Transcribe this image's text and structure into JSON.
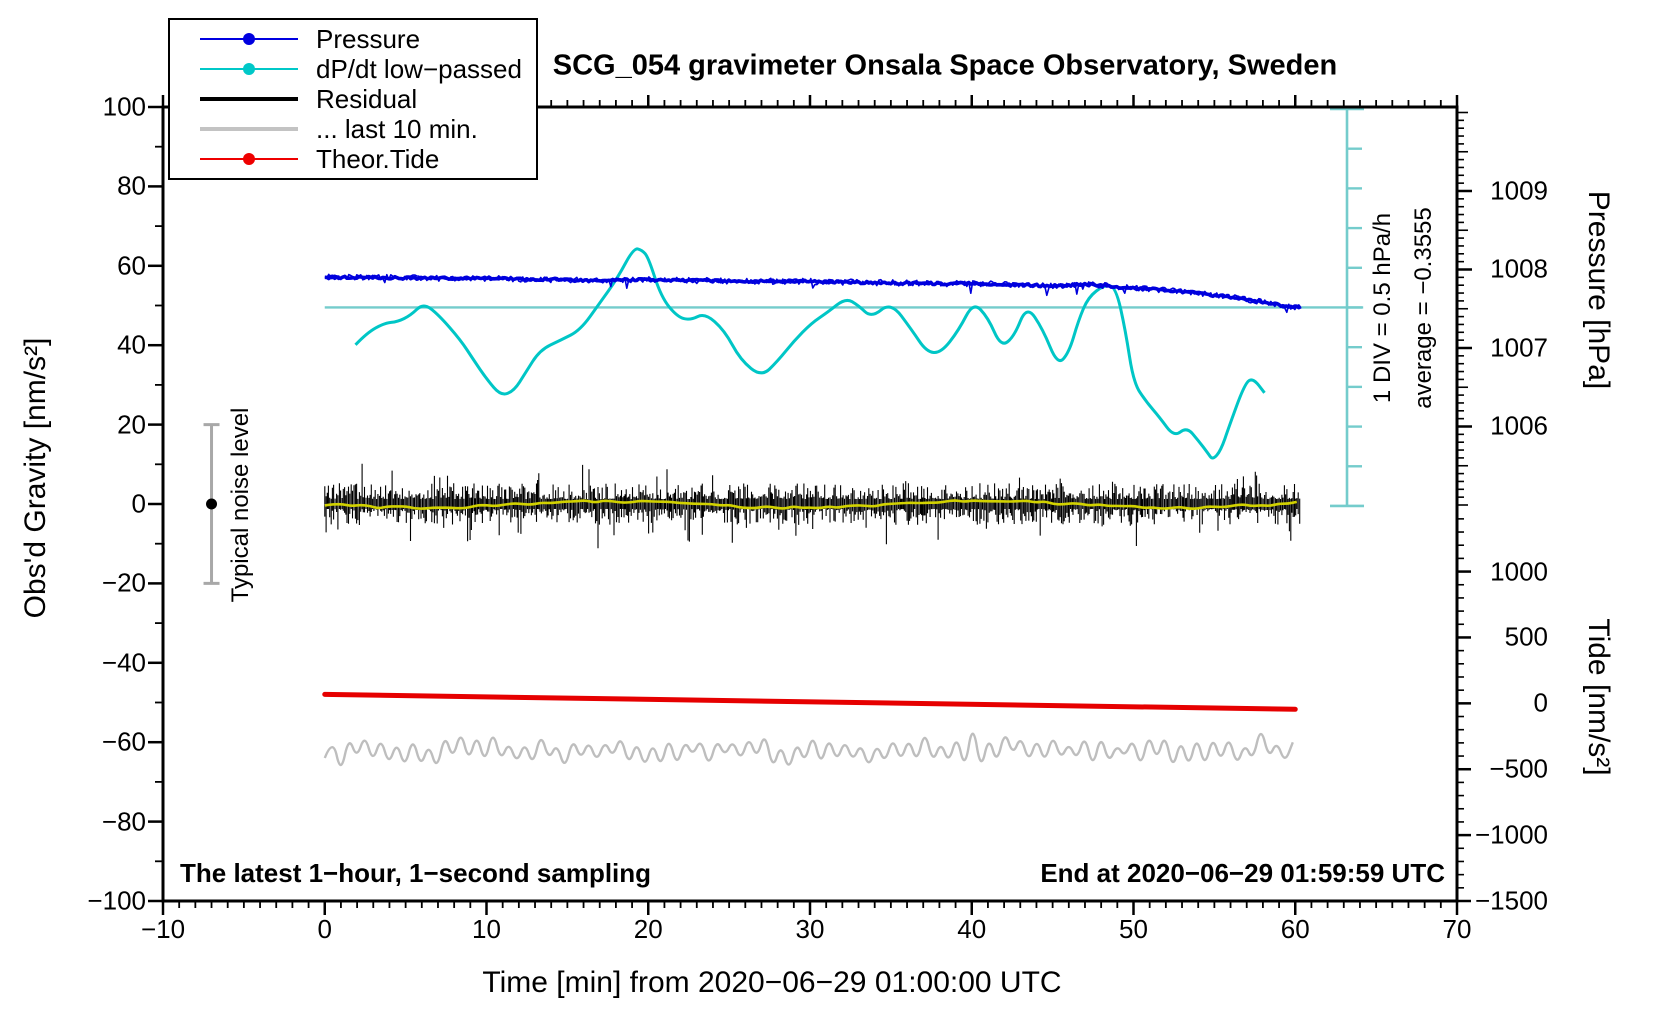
{
  "chart_data": {
    "type": "line",
    "title": "SCG_054 gravimeter Onsala Space Observatory, Sweden",
    "axes": {
      "x": {
        "title": "Time [min] from 2020−06−29 01:00:00 UTC",
        "min": -10,
        "max": 70,
        "major_step": 10,
        "minor_step": 1,
        "labels": [
          -10,
          0,
          10,
          20,
          30,
          40,
          50,
          60,
          70
        ]
      },
      "left": {
        "title": "Obs'd Gravity [nm/s²]",
        "min": -100,
        "max": 100,
        "major_step": 20,
        "minor_step": 10,
        "labels": [
          100,
          80,
          60,
          40,
          20,
          0,
          -20,
          -40,
          -60,
          -80,
          -100
        ]
      },
      "pressure": {
        "title": "Pressure [hPa]",
        "top_value": 1010.07,
        "bottom_value": 1005.0,
        "medium_step": 0.5,
        "minor_step": 0.1,
        "labels": [
          1009,
          1008,
          1007,
          1006
        ]
      },
      "tide": {
        "title": "Tide [nm/s²]",
        "top_value": 1490,
        "bottom_value": -1500,
        "minor_step": 100,
        "labels": [
          1000,
          500,
          0,
          -500,
          -1000,
          -1500
        ]
      }
    },
    "series": [
      {
        "name": "Pressure",
        "axis": "pressure",
        "color": "#0000dd",
        "points": [
          [
            0,
            1007.9
          ],
          [
            3,
            1007.9
          ],
          [
            6,
            1007.89
          ],
          [
            9,
            1007.89
          ],
          [
            12,
            1007.88
          ],
          [
            15,
            1007.87
          ],
          [
            16.5,
            1007.85
          ],
          [
            18,
            1007.87
          ],
          [
            20,
            1007.87
          ],
          [
            23,
            1007.86
          ],
          [
            26,
            1007.85
          ],
          [
            29,
            1007.85
          ],
          [
            32,
            1007.84
          ],
          [
            35,
            1007.83
          ],
          [
            38,
            1007.82
          ],
          [
            40,
            1007.82
          ],
          [
            42,
            1007.81
          ],
          [
            44,
            1007.8
          ],
          [
            45.5,
            1007.79
          ],
          [
            47,
            1007.81
          ],
          [
            48,
            1007.8
          ],
          [
            49,
            1007.78
          ],
          [
            50,
            1007.76
          ],
          [
            51,
            1007.75
          ],
          [
            52,
            1007.74
          ],
          [
            53,
            1007.72
          ],
          [
            54,
            1007.7
          ],
          [
            55,
            1007.67
          ],
          [
            56,
            1007.65
          ],
          [
            57,
            1007.62
          ],
          [
            58,
            1007.59
          ],
          [
            59,
            1007.55
          ],
          [
            60,
            1007.52
          ],
          [
            60.4,
            1007.51
          ]
        ]
      },
      {
        "name": "dP/dt low−passed",
        "axis": "left",
        "color": "#00c6c6",
        "points": [
          [
            1.9,
            40.1
          ],
          [
            2.6,
            43.1
          ],
          [
            3.7,
            45.6
          ],
          [
            4.5,
            45.9
          ],
          [
            5.3,
            47.5
          ],
          [
            6.1,
            50.6
          ],
          [
            7.0,
            47.8
          ],
          [
            8.4,
            41.3
          ],
          [
            9.2,
            36.3
          ],
          [
            10.0,
            31.5
          ],
          [
            10.9,
            27.2
          ],
          [
            11.7,
            28.5
          ],
          [
            12.4,
            33.0
          ],
          [
            13.3,
            38.8
          ],
          [
            14.6,
            41.3
          ],
          [
            15.8,
            43.8
          ],
          [
            17.0,
            50.6
          ],
          [
            18.1,
            56.9
          ],
          [
            19.1,
            64.5
          ],
          [
            19.6,
            64.0
          ],
          [
            20.0,
            62.2
          ],
          [
            20.8,
            52.1
          ],
          [
            21.8,
            47.1
          ],
          [
            22.6,
            46.3
          ],
          [
            23.5,
            48.1
          ],
          [
            24.7,
            43.8
          ],
          [
            25.7,
            36.3
          ],
          [
            27.0,
            32.0
          ],
          [
            28.0,
            36.0
          ],
          [
            29.0,
            41.0
          ],
          [
            30.1,
            45.6
          ],
          [
            31.1,
            48.3
          ],
          [
            32.2,
            51.9
          ],
          [
            33.0,
            50.0
          ],
          [
            33.8,
            46.9
          ],
          [
            35.0,
            50.9
          ],
          [
            36.3,
            43.8
          ],
          [
            37.2,
            38.3
          ],
          [
            38.1,
            38.0
          ],
          [
            39.2,
            43.8
          ],
          [
            40.1,
            50.9
          ],
          [
            41.0,
            47.0
          ],
          [
            41.8,
            39.6
          ],
          [
            42.6,
            42.0
          ],
          [
            43.4,
            50.1
          ],
          [
            44.4,
            44.0
          ],
          [
            45.3,
            35.0
          ],
          [
            46.0,
            38.0
          ],
          [
            46.6,
            46.3
          ],
          [
            47.2,
            52.1
          ],
          [
            48.2,
            55.2
          ],
          [
            48.9,
            54.7
          ],
          [
            49.5,
            43.8
          ],
          [
            50.0,
            30.5
          ],
          [
            50.8,
            25.7
          ],
          [
            51.6,
            21.9
          ],
          [
            52.5,
            16.9
          ],
          [
            53.3,
            19.4
          ],
          [
            54.0,
            16.0
          ],
          [
            54.6,
            12.8
          ],
          [
            54.9,
            11.1
          ],
          [
            55.4,
            13.5
          ],
          [
            55.9,
            19.4
          ],
          [
            56.9,
            30.5
          ],
          [
            57.4,
            31.7
          ],
          [
            58.1,
            28.0
          ]
        ]
      },
      {
        "name": "Residual",
        "axis": "left",
        "color": "#000000",
        "center": 0,
        "typical_half_amplitude": 5,
        "max_half_amplitude": 10,
        "t_start": 0,
        "t_end": 60.3,
        "smoothed_color": "#d2d200"
      },
      {
        "name": "... last 10 min.",
        "axis": "left",
        "color": "#bebebe",
        "center": -62,
        "half_amplitude": 5,
        "t_start": 0,
        "t_end": 60.3
      },
      {
        "name": "Theor.Tide",
        "axis": "tide",
        "color": "#e60000",
        "points": [
          [
            0,
            68
          ],
          [
            60,
            -45
          ]
        ]
      }
    ],
    "reference_line": {
      "for_series": "dP/dt low−passed",
      "axis": "left",
      "value": 49.5,
      "t_start": 0,
      "t_end": 64.2,
      "color": "#74cccc",
      "meaning": "average dP/dt = −0.3555 hPa/h"
    },
    "scale_bar": {
      "t": 63.2,
      "axis": "left",
      "value_top": 99.5,
      "value_bottom": -0.5,
      "divisions": 10,
      "color": "#74cccc",
      "div_label": "1 DIV = 0.5 hPa/h",
      "average_label": "average = −0.3555"
    },
    "noise_errorbar": {
      "t": -7,
      "center": 0,
      "half_span": 20,
      "label": "Typical noise level",
      "color": "#a8a8a8"
    },
    "texts": {
      "sampling": "The latest 1−hour, 1−second sampling",
      "end": "End at 2020−06−29 01:59:59 UTC"
    },
    "legend": [
      {
        "label": "Pressure",
        "color": "#0000e0",
        "line_width": 2,
        "dot": true
      },
      {
        "label": "dP/dt low−passed",
        "color": "#00c8c8",
        "line_width": 2,
        "dot": true
      },
      {
        "label": "Residual",
        "color": "#000000",
        "line_width": 4,
        "dot": false
      },
      {
        "label": "... last 10 min.",
        "color": "#c3c3c3",
        "line_width": 4,
        "dot": false
      },
      {
        "label": "Theor.Tide",
        "color": "#ee0000",
        "line_width": 2,
        "dot": true
      }
    ],
    "noise_seed": 987654321
  }
}
